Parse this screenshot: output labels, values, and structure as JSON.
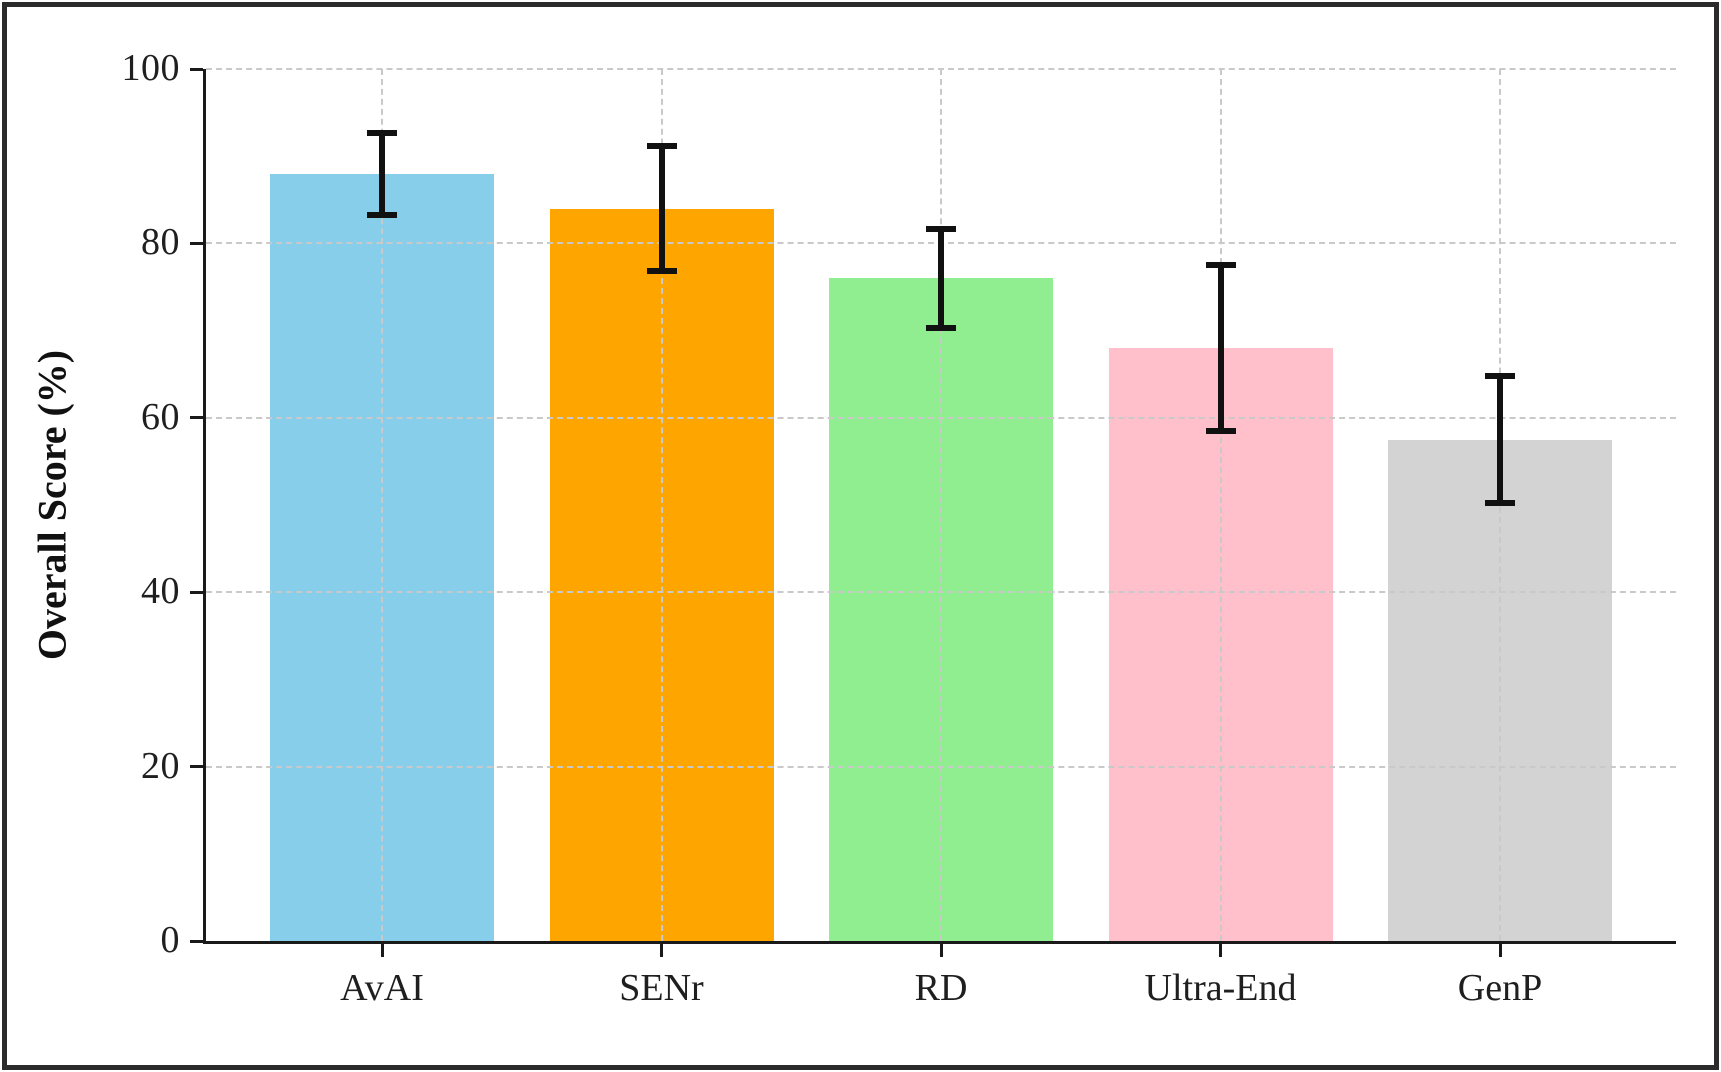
{
  "figure": {
    "background_color": "#ffffff",
    "frame_color": "#2b2b2b"
  },
  "chart_data": {
    "type": "bar",
    "categories": [
      "AvAI",
      "SENr",
      "RD",
      "Ultra-End",
      "GenP"
    ],
    "values": [
      88,
      84,
      76,
      68,
      57.5
    ],
    "error_bars": [
      4.7,
      7.2,
      5.7,
      9.5,
      7.3
    ],
    "bar_colors": [
      "#87CEEB",
      "#FFA500",
      "#90EE90",
      "#FFC0CB",
      "#D3D3D3"
    ],
    "ylabel": "Overall Score (%)",
    "ylim": [
      0,
      100
    ],
    "yticks": [
      0,
      20,
      40,
      60,
      80,
      100
    ],
    "xlabel": "",
    "legend_position": "none",
    "grid": "dashed",
    "grid_color": "#c9c9c9",
    "axis_color": "#1a1a1a",
    "error_bar_color": "#111111"
  }
}
